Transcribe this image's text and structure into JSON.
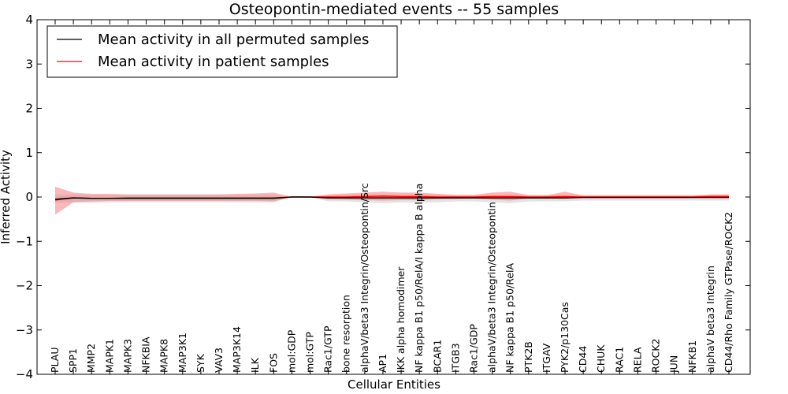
{
  "chart_data": {
    "type": "line",
    "title": "Osteopontin-mediated events -- 55 samples",
    "xlabel": "Cellular Entities",
    "ylabel": "Inferred Activity",
    "ylim": [
      -4,
      4
    ],
    "yticks": [
      -4,
      -3,
      -2,
      -1,
      0,
      1,
      2,
      3,
      4
    ],
    "ytick_labels": [
      "−4",
      "−3",
      "−2",
      "−1",
      "0",
      "1",
      "2",
      "3",
      "4"
    ],
    "categories": [
      "PLAU",
      "SPP1",
      "MMP2",
      "MAPK1",
      "MAPK3",
      "NFKBIA",
      "MAPK8",
      "MAP3K1",
      "SYK",
      "VAV3",
      "MAP3K14",
      "ILK",
      "FOS",
      "mol:GDP",
      "mol:GTP",
      "Rac1/GTP",
      "bone resorption",
      "alphaV/beta3 Integrin/Osteopontin/Src",
      "AP1",
      "IKK alpha homodimer",
      "NF kappa B1 p50/RelA/I kappa B alpha",
      "BCAR1",
      "ITGB3",
      "Rac1/GDP",
      "alphaV/beta3 Integrin/Osteopontin",
      "NF kappa B1 p50/RelA",
      "PTK2B",
      "ITGAV",
      "PYK2/p130Cas",
      "CD44",
      "CHUK",
      "RAC1",
      "RELA",
      "ROCK2",
      "JUN",
      "NFKB1",
      "alphaV beta3 Integrin",
      "CD44/Rho Family GTPase/ROCK2"
    ],
    "legend": {
      "location": "top-left",
      "entries": [
        "Mean activity in all permuted samples",
        "Mean activity in patient samples"
      ]
    },
    "series": [
      {
        "name": "Mean activity in all permuted samples",
        "color": "#000000",
        "band_color": "#c0c0c0",
        "values": [
          -0.05,
          -0.02,
          -0.03,
          -0.03,
          -0.03,
          -0.03,
          -0.03,
          -0.03,
          -0.03,
          -0.03,
          -0.03,
          -0.03,
          -0.03,
          0.0,
          0.0,
          -0.02,
          -0.02,
          -0.02,
          -0.02,
          -0.02,
          -0.02,
          -0.02,
          -0.02,
          -0.02,
          -0.02,
          -0.02,
          -0.02,
          -0.02,
          -0.02,
          -0.01,
          -0.01,
          -0.01,
          -0.01,
          -0.01,
          -0.01,
          -0.01,
          -0.01,
          -0.01
        ],
        "band_lower": [
          -0.13,
          -0.12,
          -0.13,
          -0.12,
          -0.12,
          -0.12,
          -0.12,
          -0.12,
          -0.12,
          -0.12,
          -0.12,
          -0.12,
          -0.12,
          0.0,
          0.0,
          -0.1,
          -0.1,
          -0.12,
          -0.14,
          -0.12,
          -0.13,
          -0.12,
          -0.1,
          -0.1,
          -0.12,
          -0.14,
          -0.1,
          -0.1,
          -0.1,
          -0.08,
          -0.08,
          -0.08,
          -0.08,
          -0.08,
          -0.08,
          -0.08,
          -0.08,
          -0.08
        ],
        "band_upper": [
          0.05,
          0.06,
          0.05,
          0.05,
          0.05,
          0.05,
          0.05,
          0.05,
          0.05,
          0.05,
          0.05,
          0.05,
          0.05,
          0.0,
          0.0,
          0.04,
          0.05,
          0.06,
          0.06,
          0.06,
          0.06,
          0.05,
          0.04,
          0.04,
          0.05,
          0.06,
          0.05,
          0.05,
          0.05,
          0.05,
          0.05,
          0.05,
          0.05,
          0.05,
          0.05,
          0.05,
          0.05,
          0.05
        ]
      },
      {
        "name": "Mean activity in patient samples",
        "color": "#ff0000",
        "band_color": "#f08080",
        "values": [
          -0.07,
          -0.02,
          -0.03,
          -0.03,
          -0.02,
          -0.02,
          -0.02,
          -0.02,
          -0.02,
          -0.02,
          -0.02,
          -0.02,
          -0.02,
          0.0,
          0.0,
          0.0,
          0.0,
          0.01,
          0.02,
          0.01,
          0.01,
          0.0,
          0.0,
          0.0,
          0.01,
          0.01,
          0.0,
          0.0,
          0.01,
          0.0,
          0.0,
          0.0,
          0.0,
          0.0,
          0.0,
          0.0,
          0.01,
          0.01
        ],
        "band_lower": [
          -0.4,
          -0.12,
          -0.1,
          -0.09,
          -0.09,
          -0.09,
          -0.09,
          -0.09,
          -0.09,
          -0.09,
          -0.09,
          -0.09,
          -0.1,
          0.0,
          0.0,
          -0.05,
          -0.06,
          -0.07,
          -0.08,
          -0.07,
          -0.07,
          -0.05,
          -0.04,
          -0.03,
          -0.06,
          -0.08,
          -0.03,
          -0.03,
          -0.04,
          -0.02,
          -0.02,
          -0.02,
          -0.02,
          -0.02,
          -0.02,
          -0.02,
          -0.02,
          -0.02
        ],
        "band_upper": [
          0.23,
          0.1,
          0.07,
          0.07,
          0.06,
          0.06,
          0.06,
          0.06,
          0.06,
          0.06,
          0.07,
          0.08,
          0.1,
          0.0,
          0.0,
          0.06,
          0.08,
          0.1,
          0.12,
          0.1,
          0.1,
          0.07,
          0.05,
          0.05,
          0.1,
          0.12,
          0.04,
          0.04,
          0.12,
          0.03,
          0.03,
          0.03,
          0.03,
          0.03,
          0.03,
          0.03,
          0.06,
          0.06
        ]
      }
    ]
  }
}
